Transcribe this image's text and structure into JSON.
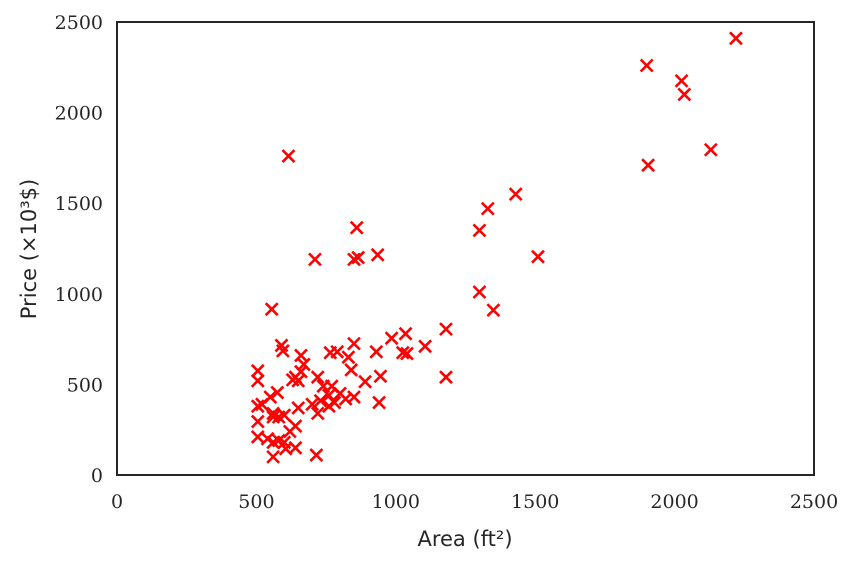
{
  "chart_data": {
    "type": "scatter",
    "xlabel": "Area (ft²)",
    "ylabel": "Price (×10³$)",
    "xlim": [
      0,
      2500
    ],
    "ylim": [
      0,
      2500
    ],
    "xticks": [
      "0",
      "500",
      "1000",
      "1500",
      "2000",
      "2500"
    ],
    "yticks": [
      "0",
      "500",
      "1000",
      "1500",
      "2000",
      "2500"
    ],
    "grid": false,
    "marker": "x",
    "marker_color": "#ff0000",
    "points": [
      [
        2220,
        2410
      ],
      [
        1900,
        2260
      ],
      [
        2025,
        2175
      ],
      [
        2035,
        2100
      ],
      [
        2130,
        1795
      ],
      [
        1905,
        1710
      ],
      [
        1430,
        1550
      ],
      [
        1330,
        1470
      ],
      [
        1300,
        1350
      ],
      [
        1510,
        1205
      ],
      [
        1300,
        1010
      ],
      [
        1350,
        910
      ],
      [
        615,
        1760
      ],
      [
        860,
        1365
      ],
      [
        710,
        1190
      ],
      [
        850,
        1190
      ],
      [
        865,
        1200
      ],
      [
        935,
        1215
      ],
      [
        555,
        915
      ],
      [
        1180,
        805
      ],
      [
        1035,
        780
      ],
      [
        985,
        755
      ],
      [
        1105,
        710
      ],
      [
        1025,
        675
      ],
      [
        1040,
        670
      ],
      [
        930,
        680
      ],
      [
        850,
        725
      ],
      [
        830,
        650
      ],
      [
        840,
        580
      ],
      [
        790,
        680
      ],
      [
        765,
        675
      ],
      [
        590,
        715
      ],
      [
        595,
        685
      ],
      [
        660,
        660
      ],
      [
        670,
        610
      ],
      [
        660,
        570
      ],
      [
        640,
        540
      ],
      [
        630,
        525
      ],
      [
        650,
        520
      ],
      [
        505,
        575
      ],
      [
        505,
        520
      ],
      [
        720,
        540
      ],
      [
        740,
        490
      ],
      [
        770,
        490
      ],
      [
        760,
        440
      ],
      [
        800,
        450
      ],
      [
        820,
        420
      ],
      [
        780,
        400
      ],
      [
        850,
        430
      ],
      [
        890,
        515
      ],
      [
        945,
        545
      ],
      [
        1180,
        540
      ],
      [
        940,
        400
      ],
      [
        730,
        410
      ],
      [
        720,
        340
      ],
      [
        700,
        390
      ],
      [
        760,
        380
      ],
      [
        650,
        370
      ],
      [
        575,
        455
      ],
      [
        550,
        430
      ],
      [
        520,
        390
      ],
      [
        505,
        380
      ],
      [
        560,
        340
      ],
      [
        580,
        320
      ],
      [
        600,
        330
      ],
      [
        505,
        295
      ],
      [
        640,
        270
      ],
      [
        620,
        240
      ],
      [
        560,
        320
      ],
      [
        540,
        200
      ],
      [
        505,
        210
      ],
      [
        580,
        190
      ],
      [
        600,
        180
      ],
      [
        560,
        180
      ],
      [
        605,
        145
      ],
      [
        640,
        150
      ],
      [
        560,
        100
      ],
      [
        715,
        110
      ]
    ]
  }
}
